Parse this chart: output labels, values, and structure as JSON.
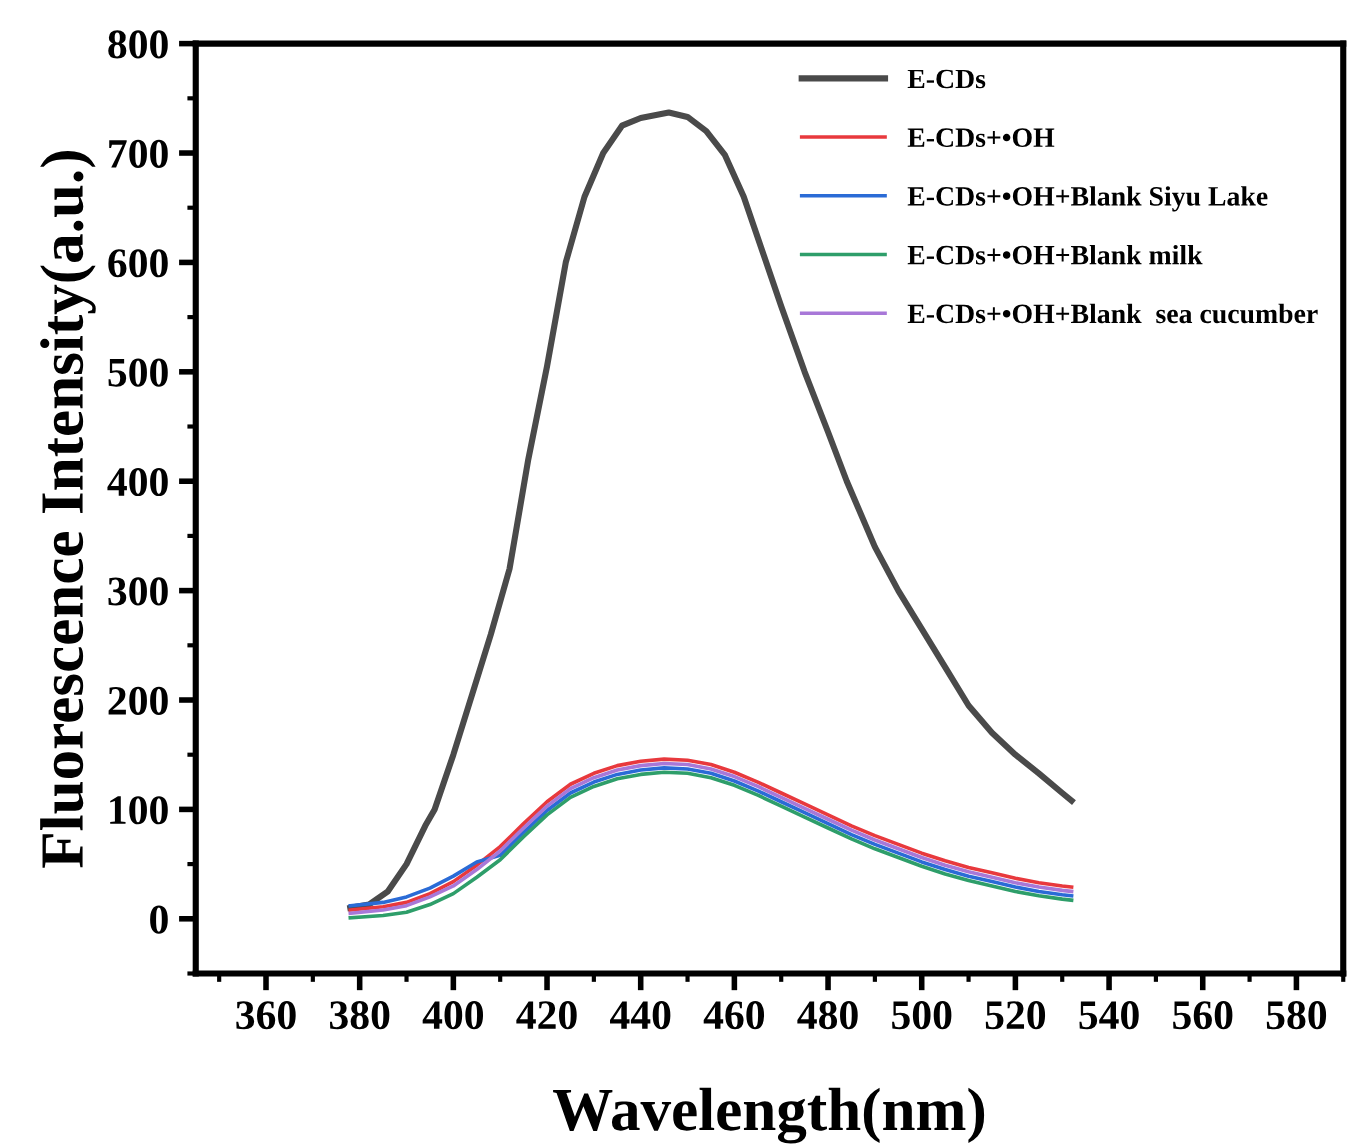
{
  "chart_data": {
    "type": "line",
    "xlabel": "Wavelength(nm)",
    "ylabel": "Fluorescence Intensity(a.u.)",
    "xlim": [
      345,
      590
    ],
    "xticks": [
      360,
      380,
      400,
      420,
      440,
      460,
      480,
      500,
      520,
      540,
      560,
      580
    ],
    "ylim": [
      -50,
      800
    ],
    "yticks": [
      0,
      100,
      200,
      300,
      400,
      500,
      600,
      700,
      800
    ],
    "grid": false,
    "legend": "top right",
    "marker": "none",
    "line_style": "solid",
    "series": [
      {
        "name": "E-CDs",
        "color": "#4a4a4a",
        "x": [
          378,
          382,
          386,
          390,
          394,
          396,
          400,
          404,
          408,
          412,
          416,
          420,
          424,
          428,
          432,
          436,
          440,
          446,
          450,
          454,
          458,
          462,
          466,
          470,
          475,
          480,
          484,
          490,
          495,
          500,
          505,
          510,
          515,
          520,
          525,
          530,
          532
        ],
        "values": [
          10,
          13,
          25,
          50,
          85,
          100,
          150,
          205,
          260,
          320,
          420,
          505,
          600,
          660,
          700,
          725,
          732,
          737,
          733,
          720,
          698,
          660,
          610,
          560,
          500,
          445,
          400,
          340,
          300,
          265,
          230,
          195,
          170,
          150,
          133,
          115,
          108
        ]
      },
      {
        "name": "E-CDs+•OH",
        "color": "#e8393d",
        "x": [
          378,
          385,
          390,
          395,
          400,
          405,
          410,
          415,
          420,
          425,
          430,
          435,
          440,
          445,
          450,
          455,
          460,
          465,
          470,
          475,
          480,
          485,
          490,
          495,
          500,
          505,
          510,
          515,
          520,
          525,
          530,
          532
        ],
        "values": [
          8,
          11,
          15,
          23,
          34,
          49,
          66,
          87,
          107,
          123,
          133,
          140,
          144,
          146,
          145,
          141,
          134,
          125,
          115,
          105,
          95,
          85,
          76,
          68,
          60,
          53,
          47,
          42,
          37,
          33,
          30,
          29
        ]
      },
      {
        "name": "E-CDs+•OH+Blank Siyu Lake",
        "color": "#2a6bd6",
        "x": [
          378,
          385,
          390,
          395,
          400,
          405,
          410,
          415,
          420,
          425,
          430,
          435,
          440,
          445,
          450,
          455,
          460,
          465,
          470,
          475,
          480,
          485,
          490,
          495,
          500,
          505,
          510,
          515,
          520,
          525,
          530,
          532
        ],
        "values": [
          12,
          15,
          20,
          28,
          39,
          52,
          58,
          79,
          99,
          115,
          125,
          132,
          136,
          138,
          137,
          133,
          126,
          117,
          107,
          97,
          87,
          77,
          68,
          60,
          52,
          45,
          39,
          34,
          29,
          25,
          22,
          21
        ]
      },
      {
        "name": "E-CDs+•OH+Blank milk",
        "color": "#2e9e6a",
        "x": [
          378,
          385,
          390,
          395,
          400,
          405,
          410,
          415,
          420,
          425,
          430,
          435,
          440,
          445,
          450,
          455,
          460,
          465,
          470,
          475,
          480,
          485,
          490,
          495,
          500,
          505,
          510,
          515,
          520,
          525,
          530,
          532
        ],
        "values": [
          1,
          3,
          6,
          13,
          23,
          38,
          54,
          75,
          95,
          111,
          121,
          128,
          132,
          134,
          133,
          129,
          122,
          113,
          103,
          93,
          83,
          73,
          64,
          56,
          48,
          41,
          35,
          30,
          25,
          21,
          18,
          17
        ]
      },
      {
        "name": "E-CDs+•OH+Blank  sea cucumber",
        "color": "#a878d8",
        "x": [
          378,
          385,
          390,
          395,
          400,
          405,
          410,
          415,
          420,
          425,
          430,
          435,
          440,
          445,
          450,
          455,
          460,
          465,
          470,
          475,
          480,
          485,
          490,
          495,
          500,
          505,
          510,
          515,
          520,
          525,
          530,
          532
        ],
        "values": [
          5,
          8,
          12,
          20,
          30,
          45,
          62,
          83,
          103,
          119,
          129,
          136,
          140,
          142,
          141,
          137,
          130,
          121,
          111,
          101,
          91,
          81,
          72,
          64,
          56,
          49,
          43,
          38,
          33,
          29,
          26,
          25
        ]
      }
    ]
  }
}
